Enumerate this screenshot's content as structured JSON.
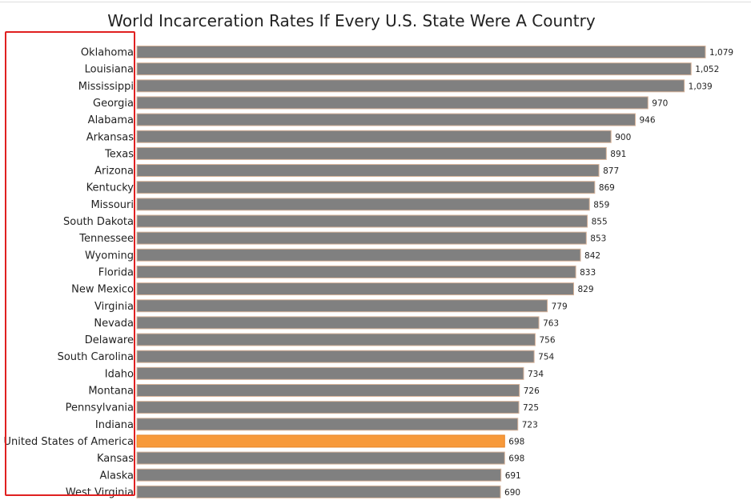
{
  "chart_data": {
    "type": "bar",
    "orientation": "horizontal",
    "title": "World Incarceration Rates If Every U.S. State Were A Country",
    "xlabel": "",
    "ylabel": "",
    "xlim": [
      0,
      1100
    ],
    "grid": false,
    "legend": "none",
    "colors": {
      "bar": "#808080",
      "highlight": "#f7993a",
      "annotation_box": "#e02020"
    },
    "highlight_category": "United States of America",
    "categories": [
      "Oklahoma",
      "Louisiana",
      "Mississippi",
      "Georgia",
      "Alabama",
      "Arkansas",
      "Texas",
      "Arizona",
      "Kentucky",
      "Missouri",
      "South Dakota",
      "Tennessee",
      "Wyoming",
      "Florida",
      "New Mexico",
      "Virginia",
      "Nevada",
      "Delaware",
      "South Carolina",
      "Idaho",
      "Montana",
      "Pennsylvania",
      "Indiana",
      "United States of America",
      "Kansas",
      "Alaska",
      "West Virginia"
    ],
    "values": [
      1079,
      1052,
      1039,
      970,
      946,
      900,
      891,
      877,
      869,
      859,
      855,
      853,
      842,
      833,
      829,
      779,
      763,
      756,
      754,
      734,
      726,
      725,
      723,
      698,
      698,
      691,
      690
    ],
    "value_labels": [
      "1,079",
      "1,052",
      "1,039",
      "970",
      "946",
      "900",
      "891",
      "877",
      "869",
      "859",
      "855",
      "853",
      "842",
      "833",
      "829",
      "779",
      "763",
      "756",
      "754",
      "734",
      "726",
      "725",
      "723",
      "698",
      "698",
      "691",
      "690"
    ]
  }
}
